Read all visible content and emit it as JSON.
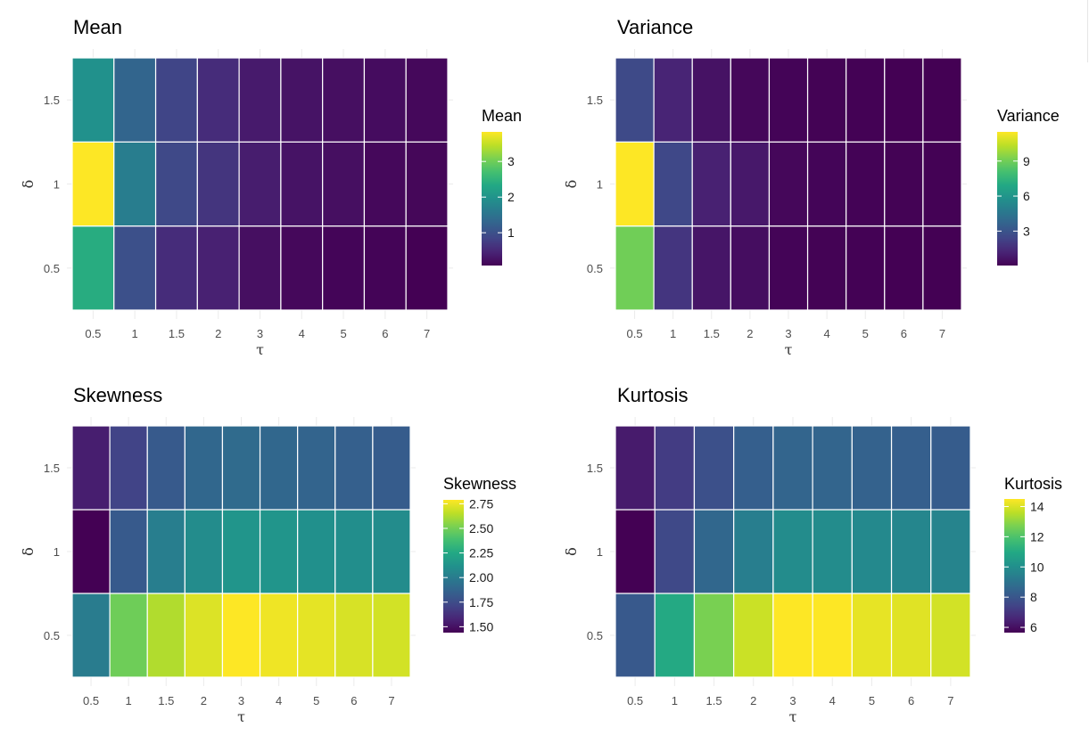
{
  "chart_data": [
    {
      "type": "heatmap",
      "title": "Mean",
      "xlabel": "τ",
      "ylabel": "δ",
      "x": [
        "0.5",
        "1",
        "1.5",
        "2",
        "3",
        "4",
        "5",
        "6",
        "7"
      ],
      "y": [
        "0.5",
        "1",
        "1.5"
      ],
      "values": [
        [
          2.4,
          1.0,
          0.55,
          0.42,
          0.23,
          0.16,
          0.12,
          0.11,
          0.08
        ],
        [
          3.83,
          1.65,
          0.9,
          0.65,
          0.38,
          0.27,
          0.23,
          0.16,
          0.14
        ],
        [
          1.95,
          1.3,
          0.85,
          0.55,
          0.35,
          0.27,
          0.23,
          0.2,
          0.16
        ]
      ],
      "colorscale": "viridis",
      "legend": {
        "title": "Mean",
        "ticks": [
          1,
          2,
          3
        ],
        "range": [
          0.08,
          3.83
        ],
        "position": "right"
      },
      "grid": true
    },
    {
      "type": "heatmap",
      "title": "Variance",
      "xlabel": "τ",
      "ylabel": "δ",
      "x": [
        "0.5",
        "1",
        "1.5",
        "2",
        "3",
        "4",
        "5",
        "6",
        "7"
      ],
      "y": [
        "0.5",
        "1",
        "1.5"
      ],
      "values": [
        [
          9.0,
          1.8,
          0.7,
          0.45,
          0.15,
          0.1,
          0.08,
          0.06,
          0.05
        ],
        [
          11.5,
          2.5,
          1.1,
          0.8,
          0.25,
          0.18,
          0.12,
          0.1,
          0.08
        ],
        [
          2.6,
          1.2,
          0.6,
          0.25,
          0.15,
          0.1,
          0.08,
          0.06,
          0.05
        ]
      ],
      "colorscale": "viridis",
      "legend": {
        "title": "Variance",
        "ticks": [
          3,
          6,
          9
        ],
        "range": [
          0.05,
          11.5
        ],
        "position": "right"
      },
      "grid": true
    },
    {
      "type": "heatmap",
      "title": "Skewness",
      "xlabel": "τ",
      "ylabel": "δ",
      "x": [
        "0.5",
        "1",
        "1.5",
        "2",
        "3",
        "4",
        "5",
        "6",
        "7"
      ],
      "y": [
        "0.5",
        "1",
        "1.5"
      ],
      "values": [
        [
          2.0,
          2.49,
          2.63,
          2.72,
          2.79,
          2.76,
          2.74,
          2.71,
          2.7
        ],
        [
          1.44,
          1.82,
          2.01,
          2.09,
          2.14,
          2.14,
          2.11,
          2.1,
          2.09
        ],
        [
          1.55,
          1.71,
          1.82,
          1.89,
          1.91,
          1.89,
          1.87,
          1.85,
          1.83
        ]
      ],
      "colorscale": "viridis",
      "legend": {
        "title": "Skewness",
        "ticks": [
          "1.50",
          "1.75",
          "2.00",
          "2.25",
          "2.50",
          "2.75"
        ],
        "range": [
          1.44,
          2.79
        ],
        "position": "right"
      },
      "grid": true
    },
    {
      "type": "heatmap",
      "title": "Kurtosis",
      "xlabel": "τ",
      "ylabel": "δ",
      "x": [
        "0.5",
        "1",
        "1.5",
        "2",
        "3",
        "4",
        "5",
        "6",
        "7"
      ],
      "y": [
        "0.5",
        "1",
        "1.5"
      ],
      "values": [
        [
          8.1,
          11.0,
          12.7,
          13.8,
          14.5,
          14.5,
          14.2,
          14.1,
          13.9
        ],
        [
          5.65,
          7.6,
          8.6,
          9.4,
          9.9,
          9.9,
          9.8,
          9.7,
          9.6
        ],
        [
          6.3,
          7.2,
          7.8,
          8.3,
          8.5,
          8.5,
          8.4,
          8.3,
          8.2
        ]
      ],
      "colorscale": "viridis",
      "legend": {
        "title": "Kurtosis",
        "ticks": [
          6,
          8,
          10,
          12,
          14
        ],
        "range": [
          5.65,
          14.5
        ],
        "position": "right"
      },
      "grid": true
    }
  ]
}
